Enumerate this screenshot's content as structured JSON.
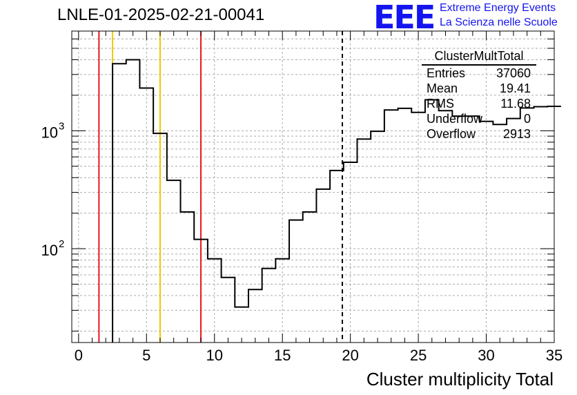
{
  "header": {
    "title": "LNLE-01-2025-02-21-00041",
    "logo_text": "EEE",
    "brand_line1": "Extreme Energy Events",
    "brand_line2": "La Scienza nelle Scuole",
    "brand_color": "#1414f0"
  },
  "stats_box": {
    "title": "ClusterMultTotal",
    "rows": [
      {
        "label": "Entries",
        "value": "37060"
      },
      {
        "label": "Mean",
        "value": "19.41"
      },
      {
        "label": "RMS",
        "value": "11.68"
      },
      {
        "label": "Underflow",
        "value": "0"
      },
      {
        "label": "Overflow",
        "value": "2913"
      }
    ]
  },
  "chart_data": {
    "type": "histogram",
    "title": "LNLE-01-2025-02-21-00041",
    "xlabel": "Cluster multiplicity Total",
    "ylabel": "",
    "xlim": [
      -0.5,
      35
    ],
    "ylim": [
      16,
      7000
    ],
    "yscale": "log",
    "grid": true,
    "x_ticks": [
      0,
      5,
      10,
      15,
      20,
      25,
      30,
      35
    ],
    "y_tick_labels": [
      {
        "base": "10",
        "exp": "2",
        "value": 100
      },
      {
        "base": "10",
        "exp": "3",
        "value": 1000
      }
    ],
    "bin_width": 1,
    "bin_edges_start": 2.5,
    "bin_values": [
      3700,
      4000,
      2300,
      950,
      380,
      205,
      120,
      82,
      57,
      32,
      45,
      68,
      82,
      175,
      205,
      320,
      460,
      540,
      850,
      990,
      1500,
      1550,
      1430,
      1830,
      1480,
      1330,
      1330,
      1200,
      1130,
      1270,
      1560,
      1600,
      1610
    ],
    "vertical_markers": [
      {
        "x": 1.5,
        "color": "#e8141e",
        "style": "solid"
      },
      {
        "x": 2.5,
        "color": "#f0c800",
        "style": "solid"
      },
      {
        "x": 6.0,
        "color": "#f0c800",
        "style": "solid"
      },
      {
        "x": 9.0,
        "color": "#e8141e",
        "style": "solid"
      },
      {
        "x": 19.41,
        "color": "#000000",
        "style": "dashed"
      }
    ]
  }
}
